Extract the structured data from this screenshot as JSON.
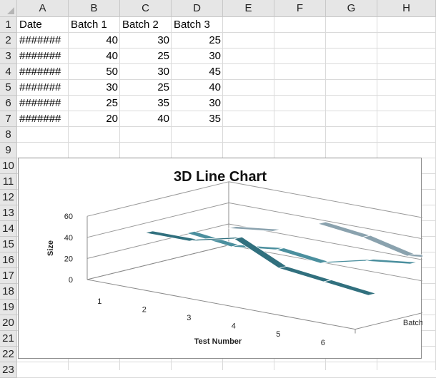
{
  "sheet": {
    "columns": [
      "A",
      "B",
      "C",
      "D",
      "E",
      "F",
      "G",
      "H"
    ],
    "rows": [
      "1",
      "2",
      "3",
      "4",
      "5",
      "6",
      "7",
      "8",
      "9",
      "10",
      "11",
      "12",
      "13",
      "14",
      "15",
      "16",
      "17",
      "18",
      "19",
      "20",
      "21",
      "22",
      "23"
    ],
    "header_row": [
      "Date",
      "Batch 1",
      "Batch 2",
      "Batch 3"
    ],
    "data_rows": [
      [
        "#######",
        "40",
        "30",
        "25"
      ],
      [
        "#######",
        "40",
        "25",
        "30"
      ],
      [
        "#######",
        "50",
        "30",
        "45"
      ],
      [
        "#######",
        "30",
        "25",
        "40"
      ],
      [
        "#######",
        "25",
        "35",
        "30"
      ],
      [
        "#######",
        "20",
        "40",
        "35"
      ]
    ]
  },
  "chart_data": {
    "type": "line",
    "variant": "3d-line",
    "title": "3D Line Chart",
    "xlabel": "Test Number",
    "ylabel": "Size",
    "categories": [
      "1",
      "2",
      "3",
      "4",
      "5",
      "6"
    ],
    "y_ticks": [
      "0",
      "20",
      "40",
      "60"
    ],
    "ylim": [
      0,
      60
    ],
    "series": [
      {
        "name": "Batch 1",
        "values": [
          40,
          40,
          50,
          30,
          25,
          20
        ],
        "color": "#31707e"
      },
      {
        "name": "Batch 2",
        "values": [
          30,
          25,
          30,
          25,
          35,
          40
        ],
        "color": "#4b8f9e"
      },
      {
        "name": "Batch 3",
        "values": [
          25,
          30,
          45,
          40,
          30,
          35
        ],
        "color": "#8aa2ae"
      }
    ],
    "grid": true,
    "legend": "depth-axis-right"
  }
}
